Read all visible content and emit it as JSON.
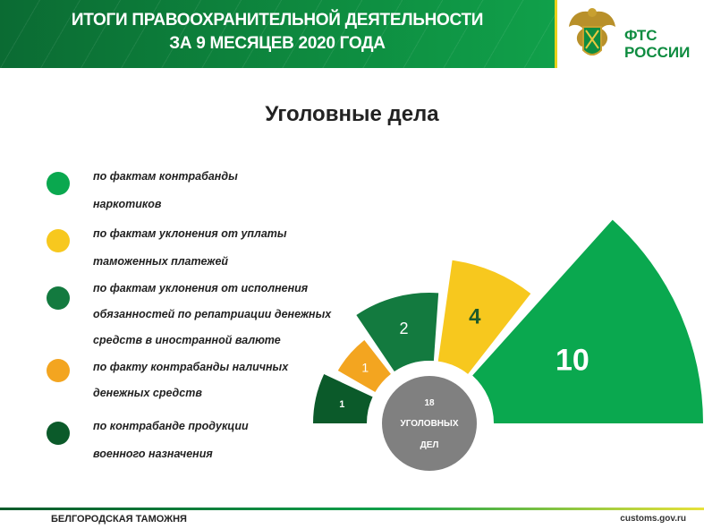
{
  "header": {
    "title_line1": "ИТОГИ ПРАВООХРАНИТЕЛЬНОЙ ДЕЯТЕЛЬНОСТИ",
    "title_line2": "ЗА 9 МЕСЯЦЕВ 2020 ГОДА",
    "logo_line1": "ФТС",
    "logo_line2": "РОССИИ"
  },
  "chart_data": {
    "type": "pie",
    "title": "Уголовные дела",
    "categories": [
      "по фактам  контрабанды наркотиков",
      "по фактам уклонения от уплаты таможенных платежей",
      "по фактам уклонения от исполнения обязанностей по репатриации денежных средств в иностранной валюте",
      "по факту контрабанды наличных денежных средств",
      "по контрабанде продукции военного назначения"
    ],
    "values": [
      10,
      4,
      2,
      1,
      1
    ],
    "labels": [
      "10",
      "4",
      "2",
      "1",
      "1"
    ],
    "colors": [
      "#0aa84f",
      "#f7c81e",
      "#137a3f",
      "#f3a520",
      "#0b5a2a"
    ],
    "label_colors": [
      "#ffffff",
      "#1e5a2a",
      "#ffffff",
      "#ffffff",
      "#ffffff"
    ],
    "center": {
      "total": "18",
      "line1": "УГОЛОВНЫХ",
      "line2": "ДЕЛ",
      "color": "#808080"
    },
    "legend_placement": "left"
  },
  "legend": [
    {
      "line1": "по фактам  контрабанды",
      "line2": "наркотиков"
    },
    {
      "line1": "по фактам уклонения от уплаты",
      "line2": "таможенных платежей"
    },
    {
      "line1": "по фактам уклонения от исполнения",
      "line2": "обязанностей по репатриации денежных",
      "line3": "средств в иностранной валюте"
    },
    {
      "line1": "по факту контрабанды наличных",
      "line2": "денежных средств"
    },
    {
      "line1": "по контрабанде продукции",
      "line2": "военного назначения"
    }
  ],
  "footer": {
    "left": "БЕЛГОРОДСКАЯ ТАМОЖНЯ",
    "right": "customs.gov.ru"
  }
}
